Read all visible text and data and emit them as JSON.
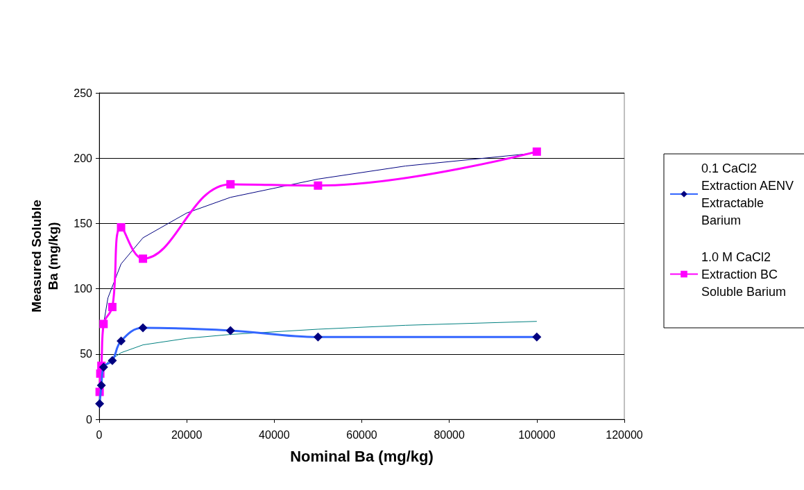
{
  "chart_data": {
    "type": "line",
    "xlabel": "Nominal Ba (mg/kg)",
    "ylabel": "Measured Soluble Ba (mg/kg)",
    "xlim": [
      0,
      120000
    ],
    "xticks": [
      0,
      20000,
      40000,
      60000,
      80000,
      100000,
      120000
    ],
    "ylim": [
      0,
      250
    ],
    "yticks": [
      0,
      50,
      100,
      150,
      200,
      250
    ],
    "grid": "y",
    "legend": "right",
    "series": [
      {
        "name": "0.1 CaCl2 Extraction AENV Extractable Barium",
        "color": "#3366ff",
        "colors": [
          "#000080",
          "#000080",
          "#000080",
          "#000080",
          "#000080",
          "#000080",
          "#000080",
          "#000080",
          "#000080"
        ],
        "marker": "diamond",
        "x": [
          100,
          500,
          1000,
          3000,
          5000,
          10000,
          30000,
          50000,
          100000
        ],
        "values": [
          12,
          26,
          40,
          45,
          60,
          70,
          68,
          63,
          63
        ]
      },
      {
        "name": "1.0 M CaCl2 Extraction BC Soluble Barium",
        "color": "#ff00ff",
        "marker": "square",
        "x": [
          100,
          250,
          500,
          1000,
          3000,
          5000,
          10000,
          30000,
          50000,
          100000
        ],
        "values": [
          21,
          35,
          41,
          73,
          86,
          147,
          123,
          180,
          179,
          205
        ]
      },
      {
        "color": "#000080",
        "marker": "none",
        "x": [
          100,
          300,
          1000,
          2000,
          5000,
          10000,
          20000,
          30000,
          50000,
          70000,
          100000
        ],
        "values": [
          8,
          39,
          73,
          93,
          119,
          139,
          158,
          170,
          184,
          194,
          204
        ]
      },
      {
        "color": "#008080",
        "marker": "none",
        "x": [
          1000,
          2000,
          5000,
          10000,
          20000,
          30000,
          50000,
          70000,
          100000
        ],
        "values": [
          39,
          44,
          51,
          57,
          62,
          65,
          69,
          72,
          75
        ]
      }
    ]
  }
}
